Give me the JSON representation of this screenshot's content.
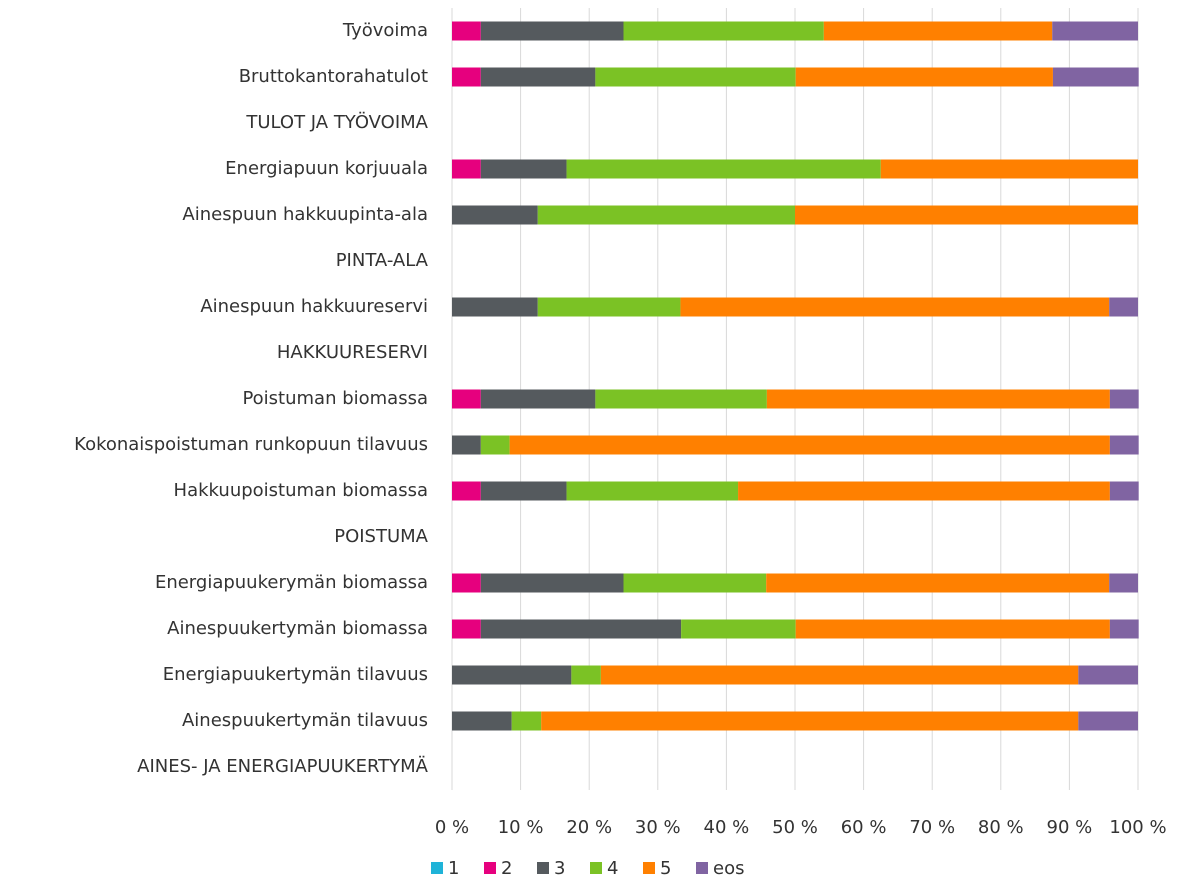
{
  "chart_data": {
    "type": "stacked_barh",
    "categories": [
      "Työvoima",
      "Bruttokantorahatulot",
      "TULOT JA TYÖVOIMA",
      "Energiapuun korjuuala",
      "Ainespuun hakkuupinta-ala",
      "PINTA-ALA",
      "Ainespuun hakkuureservi",
      "HAKKUURESERVI",
      "Poistuman biomassa",
      "Kokonaispoistuman runkopuun tilavuus",
      "Hakkuupoistuman biomassa",
      "POISTUMA",
      "Energiapuukerymän biomassa",
      "Ainespuukertymän biomassa",
      "Energiapuukertymän tilavuus",
      "Ainespuukertymän tilavuus",
      "AINES- JA ENERGIAPUUKERTYMÄ"
    ],
    "series": [
      {
        "name": "1",
        "color": "#1fb3d8",
        "values": [
          0,
          0,
          null,
          0,
          0,
          null,
          0,
          null,
          0,
          0,
          0,
          null,
          0,
          0,
          0,
          0,
          null
        ]
      },
      {
        "name": "2",
        "color": "#e6007e",
        "values": [
          4.2,
          4.2,
          null,
          4.2,
          0,
          null,
          0,
          null,
          4.2,
          0,
          4.2,
          null,
          4.2,
          4.2,
          0,
          0,
          null
        ]
      },
      {
        "name": "3",
        "color": "#555a5e",
        "values": [
          20.8,
          16.7,
          null,
          12.5,
          12.5,
          null,
          12.5,
          null,
          16.7,
          4.2,
          12.5,
          null,
          20.8,
          29.2,
          17.4,
          8.7,
          null
        ]
      },
      {
        "name": "4",
        "color": "#7bc225",
        "values": [
          29.2,
          29.2,
          null,
          45.8,
          37.5,
          null,
          20.8,
          null,
          25,
          4.2,
          25,
          null,
          20.8,
          16.7,
          4.3,
          4.3,
          null
        ]
      },
      {
        "name": "5",
        "color": "#ff8000",
        "values": [
          33.3,
          37.5,
          null,
          37.5,
          50,
          null,
          62.5,
          null,
          50,
          87.5,
          54.2,
          null,
          50,
          45.8,
          69.6,
          78.3,
          null
        ]
      },
      {
        "name": "eos",
        "color": "#8064a2",
        "values": [
          12.5,
          12.5,
          null,
          0,
          0,
          null,
          4.2,
          null,
          4.2,
          4.2,
          4.2,
          null,
          4.2,
          4.2,
          8.7,
          8.7,
          null
        ]
      }
    ],
    "xlim": [
      0,
      100
    ],
    "xticks": [
      {
        "value": 0,
        "label": "0 %"
      },
      {
        "value": 10,
        "label": "10 %"
      },
      {
        "value": 20,
        "label": "20 %"
      },
      {
        "value": 30,
        "label": "30 %"
      },
      {
        "value": 40,
        "label": "40 %"
      },
      {
        "value": 50,
        "label": "50 %"
      },
      {
        "value": 60,
        "label": "60 %"
      },
      {
        "value": 70,
        "label": "70 %"
      },
      {
        "value": 80,
        "label": "80 %"
      },
      {
        "value": 90,
        "label": "90 %"
      },
      {
        "value": 100,
        "label": "100 %"
      }
    ],
    "grid": true,
    "legend": "bottom"
  }
}
